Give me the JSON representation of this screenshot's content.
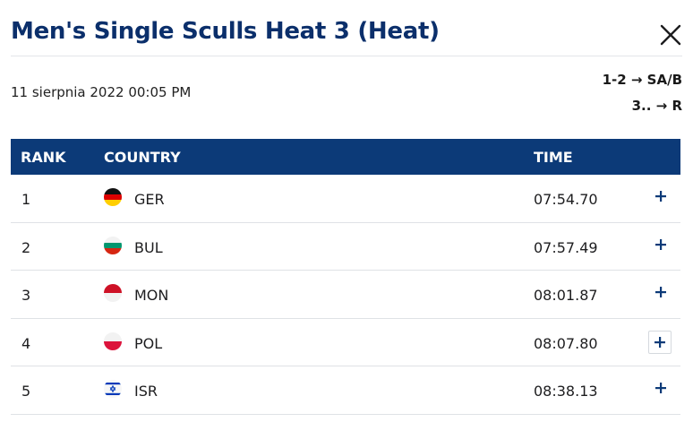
{
  "header": {
    "title": "Men's Single Sculls Heat 3 (Heat)",
    "close_icon": "close-icon"
  },
  "info": {
    "date": "11 sierpnia 2022 00:05 PM",
    "qualification": [
      {
        "text": "1-2 → SA/B"
      },
      {
        "text": "3.. → R"
      }
    ]
  },
  "table": {
    "headers": {
      "rank": "RANK",
      "country": "COUNTRY",
      "time": "TIME"
    },
    "rows": [
      {
        "rank": "1",
        "country": "GER",
        "time": "07:54.70",
        "flag": "flag-germany-icon"
      },
      {
        "rank": "2",
        "country": "BUL",
        "time": "07:57.49",
        "flag": "flag-bulgaria-icon"
      },
      {
        "rank": "3",
        "country": "MON",
        "time": "08:01.87",
        "flag": "flag-monaco-icon"
      },
      {
        "rank": "4",
        "country": "POL",
        "time": "08:07.80",
        "flag": "flag-poland-icon"
      },
      {
        "rank": "5",
        "country": "ISR",
        "time": "08:38.13",
        "flag": "flag-israel-icon"
      }
    ],
    "expand_icon": "plus-icon"
  },
  "colors": {
    "title": "#0b2f6b",
    "header_bg": "#0c3a78",
    "divider": "#dfe2e6"
  }
}
